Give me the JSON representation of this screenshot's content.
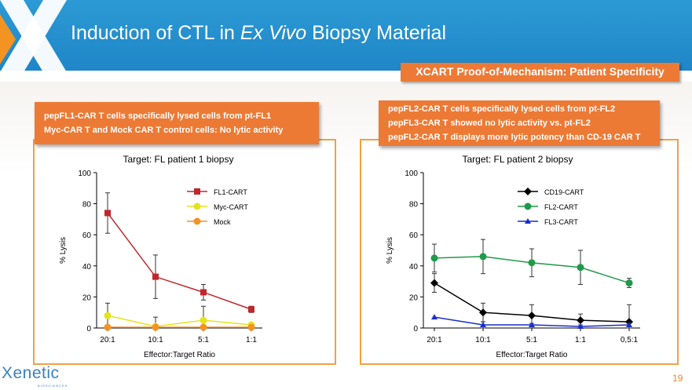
{
  "header": {
    "title_part1": "Induction of CTL in ",
    "title_italic": "Ex Vivo",
    "title_part2": " Biopsy Material",
    "subtitle": "XCART Proof-of-Mechanism: Patient Specificity"
  },
  "callouts": {
    "left": [
      "pepFL1-CAR T cells specifically lysed cells from pt-FL1",
      "Myc-CAR T and Mock CAR T control cells: No lytic activity"
    ],
    "right": [
      "pepFL2-CAR T cells specifically lysed cells from pt-FL2",
      "pepFL3-CAR T showed no lytic activity vs. pt-FL2",
      "pepFL2-CAR T displays more lytic potency than CD-19 CAR T"
    ]
  },
  "footer": {
    "logo": "Xenetic",
    "logo_sub": "BIOSCIENCES",
    "page": "19"
  },
  "colors": {
    "banner": "#1f86c7",
    "accent": "#ec7a35",
    "panel_border": "#f0a145"
  },
  "chart_data": [
    {
      "type": "line",
      "title": "Target: FL patient 1 biopsy",
      "xlabel": "Effector:Target Ratio",
      "ylabel": "% Lysis",
      "categories": [
        "20:1",
        "10:1",
        "5:1",
        "1:1"
      ],
      "ylim": [
        0,
        100
      ],
      "yticks": [
        0,
        20,
        40,
        60,
        80,
        100
      ],
      "legend": "top-right",
      "series": [
        {
          "name": "FL1-CART",
          "color": "#c0272d",
          "marker": "square",
          "values": [
            74,
            33,
            23,
            12
          ],
          "err": [
            13,
            14,
            5,
            2
          ]
        },
        {
          "name": "Myc-CART",
          "color": "#e6e21e",
          "marker": "circle",
          "values": [
            8,
            1,
            5,
            2
          ],
          "err": [
            8,
            6,
            9,
            1
          ]
        },
        {
          "name": "Mock",
          "color": "#f39422",
          "marker": "circle",
          "values": [
            0.5,
            0.5,
            0.5,
            0.5
          ],
          "err": [
            0,
            0,
            0,
            0
          ]
        }
      ]
    },
    {
      "type": "line",
      "title": "Target: FL patient 2 biopsy",
      "xlabel": "Effector:Target Ratio",
      "ylabel": "% Lysis",
      "categories": [
        "20:1",
        "10:1",
        "5:1",
        "1:1",
        "0,5:1"
      ],
      "ylim": [
        0,
        100
      ],
      "yticks": [
        0,
        20,
        40,
        60,
        80,
        100
      ],
      "legend": "top-right",
      "series": [
        {
          "name": "CD19-CART",
          "color": "#000000",
          "marker": "diamond",
          "values": [
            29,
            10,
            8,
            5,
            4
          ],
          "err": [
            6,
            6,
            7,
            4,
            11
          ]
        },
        {
          "name": "FL2-CART",
          "color": "#1f9a4a",
          "marker": "circle",
          "values": [
            45,
            46,
            42,
            39,
            29
          ],
          "err": [
            9,
            11,
            9,
            11,
            3
          ]
        },
        {
          "name": "FL3-CART",
          "color": "#1b2fc4",
          "marker": "triangle",
          "values": [
            7,
            2,
            2,
            1,
            2
          ],
          "err": [
            0,
            2,
            1,
            1,
            1
          ]
        }
      ]
    }
  ]
}
